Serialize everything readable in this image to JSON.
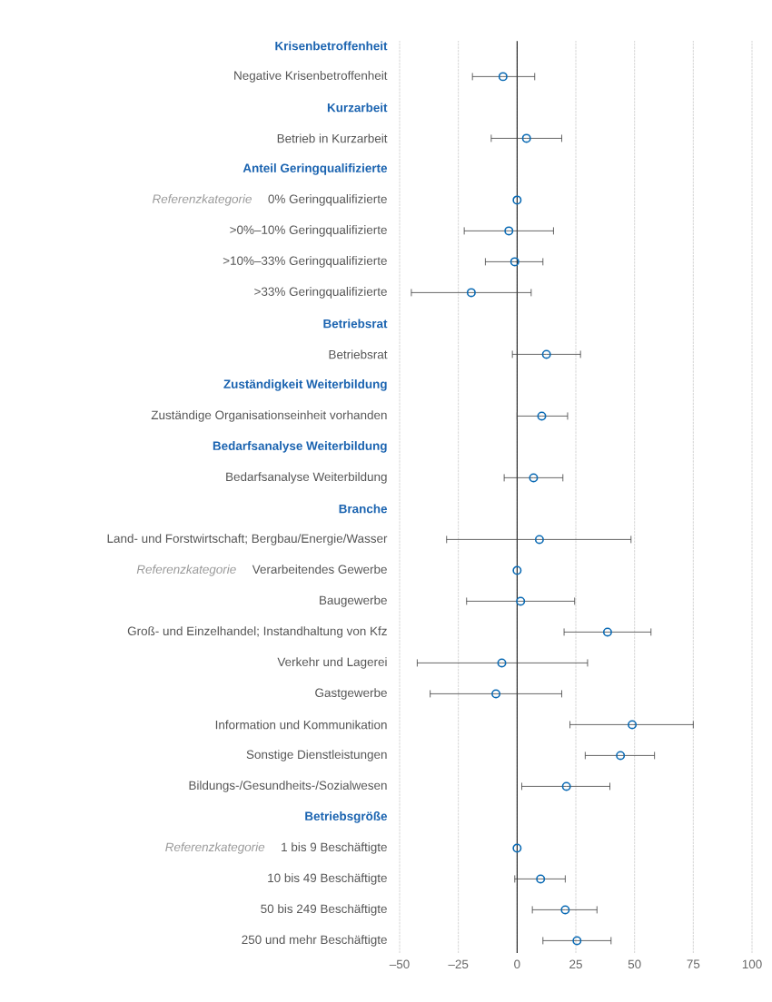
{
  "chart_data": {
    "type": "scatter",
    "orientation": "horizontal",
    "categories": [
      "Krisenbetroffenheit",
      "Negative Krisenbetroffenheit",
      "Kurzarbeit",
      "Betrieb in Kurzarbeit",
      "Anteil Geringqualifizierte",
      "0% Geringqualifizierte",
      ">0%–10% Geringqualifizierte",
      ">10%–33% Geringqualifizierte",
      ">33% Geringqualifizierte",
      "Betriebsrat",
      "Betriebsrat",
      "Zuständigkeit Weiterbildung",
      "Zuständige Organisationseinheit vorhanden",
      "Bedarfsanalyse Weiterbildung",
      "Bedarfsanalyse Weiterbildung",
      "Branche",
      "Land- und Forstwirtschaft; Bergbau/Energie/Wasser",
      "Verarbeitendes Gewerbe",
      "Baugewerbe",
      "Groß- und Einzelhandel; Instandhaltung von Kfz",
      "Verkehr und Lagerei",
      "Gastgewerbe",
      "Information und Kommunikation",
      "Sonstige Dienstleistungen",
      "Bildungs-/Gesundheits-/Sozialwesen",
      "Betriebsgröße",
      "1 bis 9 Beschäftigte",
      "10 bis 49 Beschäftigte",
      "50 bis 249 Beschäftigte",
      "250 und mehr Beschäftigte"
    ],
    "series": [
      {
        "color": "#0a6ab4",
        "values": [
          null,
          -6,
          null,
          4,
          null,
          0,
          -3.5,
          -1,
          -19.5,
          null,
          12.5,
          null,
          10.5,
          null,
          7,
          null,
          9.5,
          0,
          1.5,
          38.5,
          -6.5,
          -9,
          49,
          44,
          21,
          null,
          0,
          10,
          20.5,
          25.5
        ],
        "errors": [
          null,
          [
            -19,
            7.5
          ],
          null,
          [
            -11,
            19
          ],
          null,
          null,
          [
            -22.5,
            15.5
          ],
          [
            -13.5,
            11
          ],
          [
            -45,
            6
          ],
          null,
          [
            -2,
            27
          ],
          null,
          [
            0,
            21.5
          ],
          null,
          [
            -5.5,
            19.5
          ],
          null,
          [
            -30,
            48.5
          ],
          null,
          [
            -21.5,
            24.5
          ],
          [
            20,
            57
          ],
          [
            -42.5,
            30
          ],
          [
            -37,
            19
          ],
          [
            22.5,
            75
          ],
          [
            29,
            58.5
          ],
          [
            2,
            39.5
          ],
          null,
          null,
          [
            -1,
            20.5
          ],
          [
            6.5,
            34
          ],
          [
            11,
            40
          ]
        ]
      }
    ],
    "marker": "circle",
    "grid": "x",
    "xlim": [
      -50,
      100
    ],
    "xticks": [
      {
        "value": -50,
        "label": "–50"
      },
      {
        "value": -25,
        "label": "–25"
      },
      0,
      25,
      50,
      75,
      100
    ],
    "ref_lines": [
      {
        "axis": "x",
        "value": 0,
        "color": "#000000"
      }
    ],
    "annotations": [
      "Referenzkategorie",
      "Referenzkategorie",
      "Referenzkategorie"
    ]
  }
}
